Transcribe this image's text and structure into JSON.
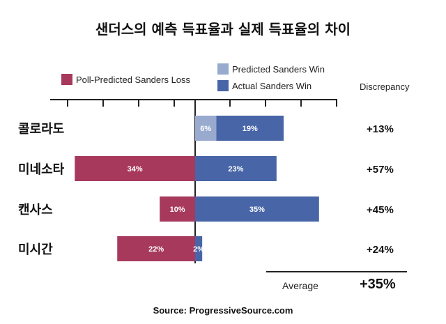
{
  "title": "샌더스의 예측 득표율과 실제 득표율의 차이",
  "source": "Source: ProgressiveSource.com",
  "legend": {
    "loss": "Poll-Predicted Sanders Loss",
    "predicted_win": "Predicted Sanders Win",
    "actual_win": "Actual Sanders Win"
  },
  "discrepancy_header": "Discrepancy",
  "average_label": "Average",
  "average_value": "+35%",
  "colors": {
    "loss": "#a7395d",
    "predicted_win": "#98aace",
    "actual_win": "#4765a7",
    "axis": "#222222"
  },
  "chart_data": {
    "type": "bar",
    "orientation": "horizontal",
    "stacked": true,
    "categories": [
      "콜로라도",
      "미네소타",
      "캔사스",
      "미시간"
    ],
    "series": [
      {
        "name": "Poll-Predicted Sanders Loss",
        "direction": "left",
        "values": [
          0,
          34,
          10,
          22
        ],
        "labels": [
          "",
          "34%",
          "10%",
          "22%"
        ]
      },
      {
        "name": "Predicted Sanders Win",
        "direction": "right",
        "values": [
          6,
          0,
          0,
          0
        ],
        "labels": [
          "6%",
          "",
          "",
          ""
        ]
      },
      {
        "name": "Actual Sanders Win",
        "direction": "right",
        "values": [
          19,
          23,
          35,
          2
        ],
        "labels": [
          "19%",
          "23%",
          "35%",
          "2%"
        ]
      }
    ],
    "discrepancy": [
      "+13%",
      "+57%",
      "+45%",
      "+24%"
    ],
    "average_discrepancy": "+35%"
  }
}
